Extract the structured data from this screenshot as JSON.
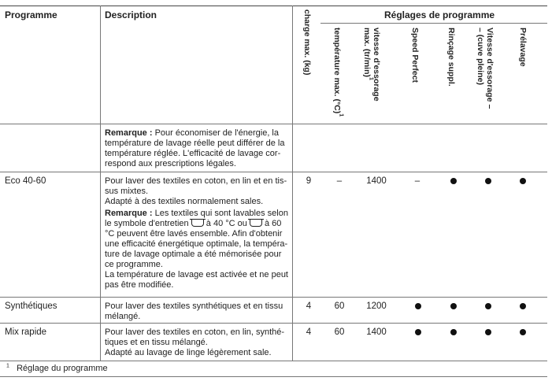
{
  "header": {
    "col_programme": "Programme",
    "col_description": "Description",
    "group_title": "Réglages de programme",
    "col_charge": "charge max. (kg)",
    "col_temp": "température max. (°C)",
    "col_temp_sup": "1",
    "col_vitesse_line1": "vitesse d'essorage",
    "col_vitesse_line2": "max. (tr/min)",
    "col_vitesse_sup": "1",
    "col_speed": "Speed Perfect",
    "col_rincage": "Rinçage suppl.",
    "col_vitesse2_line1": "Vitesse d'essorage –",
    "col_vitesse2_line2": "– (cuve pleine)",
    "col_prelavage": "Prélavage"
  },
  "rows": {
    "intro": {
      "remark_label": "Remarque :",
      "remark_l1": " Pour économiser de l'énergie, la",
      "remark_l2": "température de lavage réelle peut différer de la",
      "remark_l3": "température réglée. L'efficacité de lavage cor-",
      "remark_l4": "respond aux prescriptions légales."
    },
    "eco": {
      "name": "Eco 40-60",
      "d1": "Pour laver des textiles en coton, en lin et en tis-",
      "d2": "sus mixtes.",
      "d3": "Adapté à des textiles normalement sales.",
      "remark_label": "Remarque :",
      "r1": " Les textiles qui sont lavables selon",
      "r2a": "le symbole d'entretien ",
      "r2b": " à 40 °C ou ",
      "r2c": " à 60",
      "r3": "°C peuvent être lavés ensemble. Afin d'obtenir",
      "r4": "une efficacité énergétique optimale, la tempéra-",
      "r5": "ture de lavage optimale a été mémorisée pour",
      "r6": "ce programme.",
      "r7": "La température de lavage est activée et ne peut",
      "r8": "pas être modifiée.",
      "charge": "9",
      "temp": "–",
      "vitesse": "1400",
      "speed": "–",
      "rincage": "●",
      "vitesse2": "●",
      "prelavage": "●"
    },
    "synth": {
      "name": "Synthétiques",
      "d1": "Pour laver des textiles synthétiques et en tissu",
      "d2": "mélangé.",
      "charge": "4",
      "temp": "60",
      "vitesse": "1200"
    },
    "mix": {
      "name": "Mix rapide",
      "d1": "Pour laver des textiles en coton, en lin, synthé-",
      "d2": "tiques et en tissu mélangé.",
      "d3": "Adapté au lavage de linge légèrement sale.",
      "charge": "4",
      "temp": "60",
      "vitesse": "1400"
    }
  },
  "footnote": {
    "mark": "1",
    "text": "Réglage du programme"
  }
}
